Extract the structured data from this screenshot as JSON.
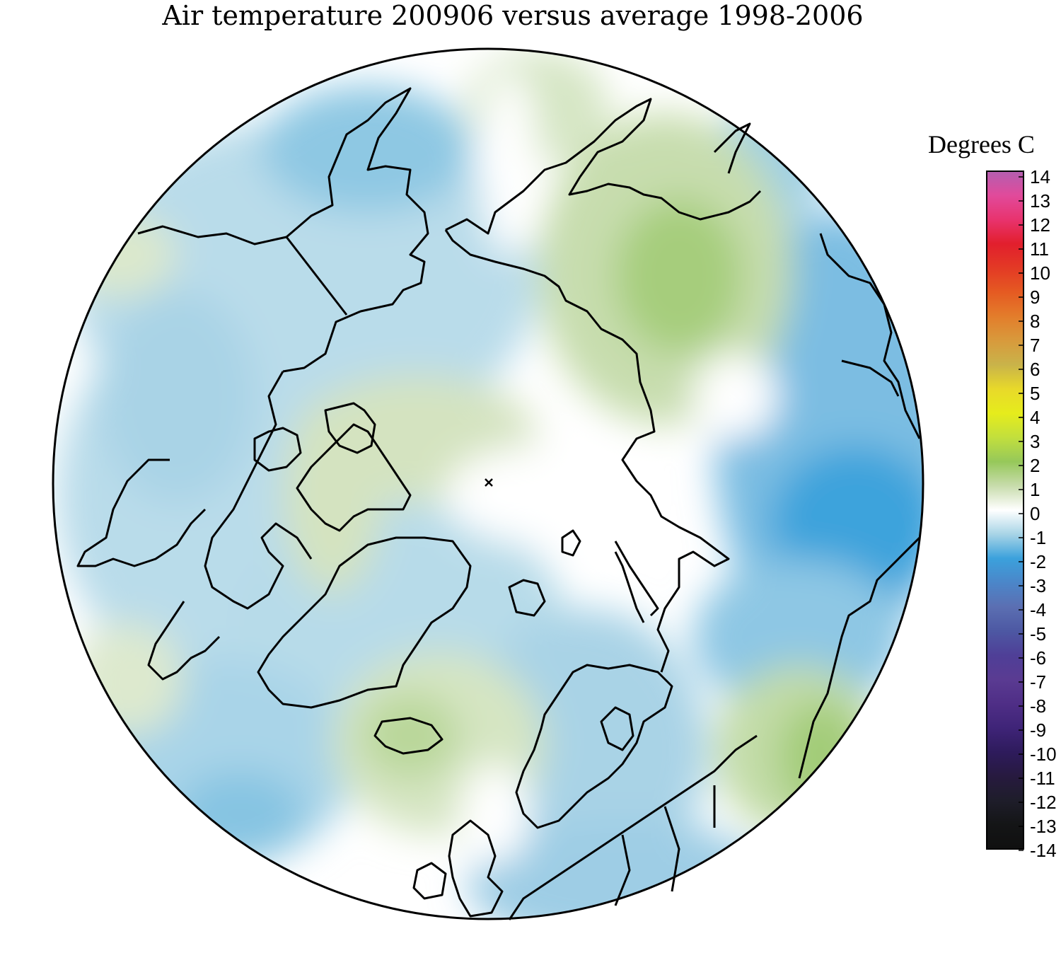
{
  "title": "Air temperature 200906 versus average 1998-2006",
  "legend": {
    "title": "Degrees C",
    "ticks": [
      "14",
      "13",
      "12",
      "11",
      "10",
      "9",
      "8",
      "7",
      "6",
      "5",
      "4",
      "3",
      "2",
      "1",
      "0",
      "-1",
      "-2",
      "-3",
      "-4",
      "-5",
      "-6",
      "-7",
      "-8",
      "-9",
      "-10",
      "-11",
      "-12",
      "-13",
      "-14"
    ],
    "range": [
      -14,
      14
    ],
    "colors": {
      "14": "#b35fb0",
      "13": "#e14a9b",
      "12": "#e8336e",
      "11": "#e21f2d",
      "10": "#e33a25",
      "9": "#e55a22",
      "8": "#e37d2b",
      "7": "#d89a3c",
      "6": "#c9b34a",
      "5": "#e8d92a",
      "4": "#e6ec1c",
      "3": "#c2df3d",
      "2": "#96c85a",
      "1": "#c8dcac",
      "0": "#ffffff",
      "-1": "#a7d4e6",
      "-2": "#3ba1dc",
      "-3": "#4b86c9",
      "-4": "#5b6fb2",
      "-5": "#4d58a3",
      "-6": "#4f3f97",
      "-7": "#5a3b92",
      "-8": "#4f2e86",
      "-9": "#3f2478",
      "-10": "#2e1b5c",
      "-11": "#271a3f",
      "-12": "#1e1d2a",
      "-13": "#141516",
      "-14": "#101010"
    }
  },
  "map": {
    "projection": "north polar stereographic",
    "pole_marker": "x"
  }
}
